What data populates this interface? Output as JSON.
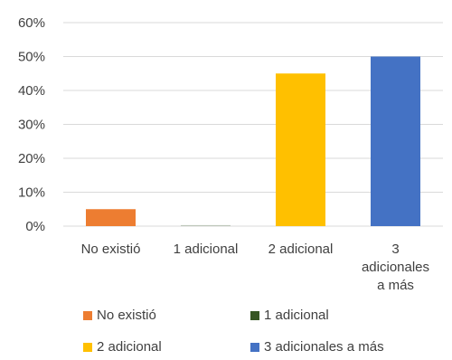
{
  "chart_data": {
    "type": "bar",
    "categories": [
      "No existió",
      "1 adicional",
      "2 adicional",
      "3 adicionales a más"
    ],
    "category_label_lines": [
      [
        "No existió"
      ],
      [
        "1 adicional"
      ],
      [
        "2 adicional"
      ],
      [
        "3",
        "adicionales",
        "a más"
      ]
    ],
    "values": [
      5,
      0.3,
      45,
      50
    ],
    "colors": [
      "#ED7D31",
      "#375623",
      "#FFC000",
      "#4472C4"
    ],
    "yticks": [
      "0%",
      "10%",
      "20%",
      "30%",
      "40%",
      "50%",
      "60%"
    ],
    "ylim": [
      0,
      60
    ],
    "grid": true,
    "legend_position": "bottom",
    "legend": [
      "No existió",
      "1 adicional",
      "2 adicional",
      "3 adicionales a más"
    ]
  }
}
